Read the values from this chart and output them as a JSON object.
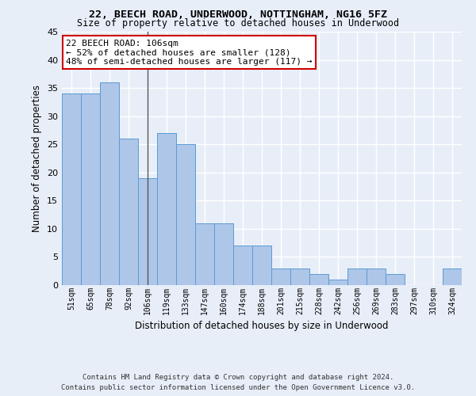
{
  "title": "22, BEECH ROAD, UNDERWOOD, NOTTINGHAM, NG16 5FZ",
  "subtitle": "Size of property relative to detached houses in Underwood",
  "xlabel": "Distribution of detached houses by size in Underwood",
  "ylabel": "Number of detached properties",
  "categories": [
    "51sqm",
    "65sqm",
    "78sqm",
    "92sqm",
    "106sqm",
    "119sqm",
    "133sqm",
    "147sqm",
    "160sqm",
    "174sqm",
    "188sqm",
    "201sqm",
    "215sqm",
    "228sqm",
    "242sqm",
    "256sqm",
    "269sqm",
    "283sqm",
    "297sqm",
    "310sqm",
    "324sqm"
  ],
  "values": [
    34,
    34,
    36,
    26,
    19,
    27,
    25,
    11,
    11,
    7,
    7,
    3,
    3,
    2,
    1,
    3,
    3,
    2,
    0,
    0,
    3
  ],
  "bar_color": "#aec6e8",
  "bar_edge_color": "#5b9bd5",
  "highlight_index": 4,
  "highlight_line_color": "#555555",
  "annotation_text": "22 BEECH ROAD: 106sqm\n← 52% of detached houses are smaller (128)\n48% of semi-detached houses are larger (117) →",
  "annotation_box_color": "#ffffff",
  "annotation_box_edge": "#cc0000",
  "background_color": "#e8eef8",
  "grid_color": "#ffffff",
  "ylim": [
    0,
    45
  ],
  "yticks": [
    0,
    5,
    10,
    15,
    20,
    25,
    30,
    35,
    40,
    45
  ],
  "footer_line1": "Contains HM Land Registry data © Crown copyright and database right 2024.",
  "footer_line2": "Contains public sector information licensed under the Open Government Licence v3.0."
}
